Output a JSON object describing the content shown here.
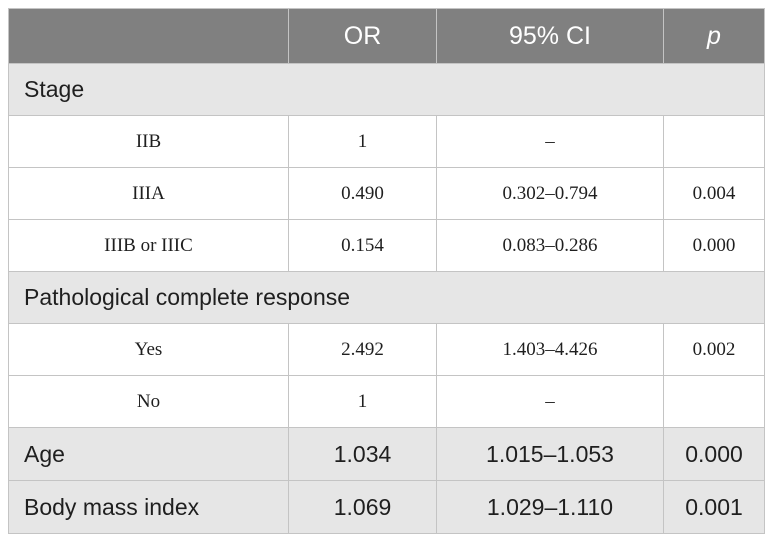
{
  "table": {
    "headers": [
      "",
      "OR",
      "95% CI",
      "p"
    ],
    "sections": [
      {
        "title": "Stage",
        "rows": [
          {
            "label": "IIB",
            "or": "1",
            "ci": "–",
            "p": ""
          },
          {
            "label": "IIIA",
            "or": "0.490",
            "ci": "0.302–0.794",
            "p": "0.004"
          },
          {
            "label": "IIIB or IIIC",
            "or": "0.154",
            "ci": "0.083–0.286",
            "p": "0.000"
          }
        ]
      },
      {
        "title": "Pathological complete response",
        "rows": [
          {
            "label": "Yes",
            "or": "2.492",
            "ci": "1.403–4.426",
            "p": "0.002"
          },
          {
            "label": "No",
            "or": "1",
            "ci": "–",
            "p": ""
          }
        ]
      }
    ],
    "main_rows": [
      {
        "label": "Age",
        "or": "1.034",
        "ci": "1.015–1.053",
        "p": "0.000"
      },
      {
        "label": "Body mass index",
        "or": "1.069",
        "ci": "1.029–1.110",
        "p": "0.001"
      }
    ]
  }
}
